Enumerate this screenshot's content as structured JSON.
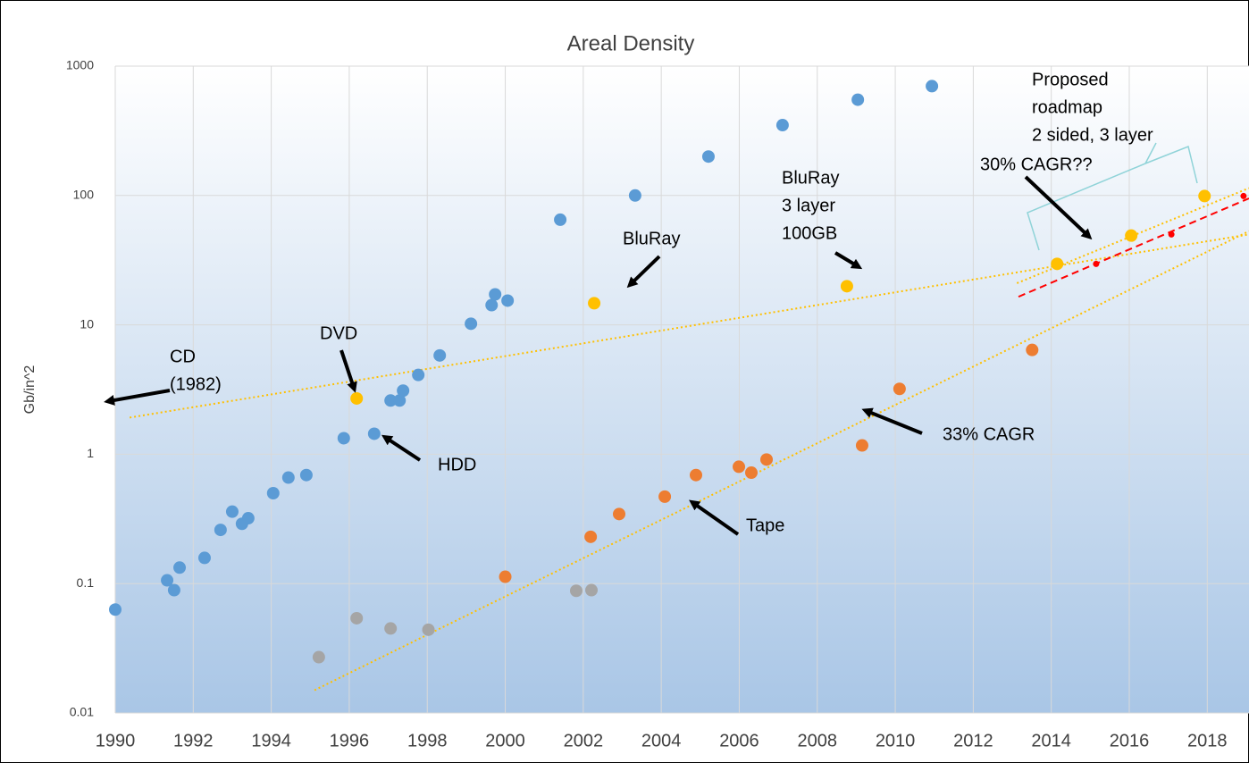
{
  "chart_data": {
    "type": "scatter",
    "title": "Areal Density",
    "y_label": "Gb/in^2",
    "log_y": true,
    "grid": true,
    "xlim": [
      1990,
      2019.07
    ],
    "xticks": [
      1990,
      1992,
      1994,
      1996,
      1998,
      2000,
      2002,
      2004,
      2006,
      2008,
      2010,
      2012,
      2014,
      2016,
      2018
    ],
    "ylim": [
      0.01,
      1000
    ],
    "yticks": [
      0.01,
      0.1,
      1,
      10,
      100,
      1000
    ],
    "series": [
      {
        "color": "#5b9bd5",
        "x": [
          1990.0,
          1991.33,
          1991.51,
          1991.65,
          1992.29,
          1992.7,
          1993.0,
          1993.25,
          1993.41,
          1994.05,
          1994.44,
          1994.9,
          1995.86,
          1996.64,
          1997.06,
          1997.29,
          1997.38,
          1997.77,
          1998.32,
          1999.12,
          1999.65,
          1999.74,
          2000.06,
          2001.41,
          2003.33,
          2005.21,
          2007.11,
          2009.04,
          2010.94
        ],
        "values": [
          0.063,
          0.106,
          0.089,
          0.133,
          0.158,
          0.26,
          0.36,
          0.29,
          0.32,
          0.5,
          0.66,
          0.69,
          1.33,
          1.44,
          2.6,
          2.6,
          3.1,
          4.1,
          5.8,
          10.2,
          14.2,
          17.2,
          15.4,
          65,
          100,
          200,
          350,
          550,
          700
        ]
      },
      {
        "color": "#ed7d31",
        "x": [
          2000.0,
          2002.19,
          2002.92,
          2004.09,
          2004.89,
          2005.99,
          2006.31,
          2006.7,
          2009.15,
          2010.11,
          2013.51
        ],
        "values": [
          0.113,
          0.23,
          0.345,
          0.47,
          0.69,
          0.8,
          0.72,
          0.91,
          1.17,
          3.2,
          6.4
        ]
      },
      {
        "color": "#a5a5a5",
        "x": [
          1995.22,
          1996.19,
          1997.06,
          1998.03,
          2001.82,
          2002.21
        ],
        "values": [
          0.027,
          0.054,
          0.045,
          0.044,
          0.088,
          0.089
        ]
      },
      {
        "color": "#ffc000",
        "x": [
          1996.19,
          2002.28,
          2008.76,
          2014.15,
          2016.05,
          2017.93
        ],
        "values": [
          2.7,
          14.7,
          19.9,
          29.6,
          49,
          99
        ]
      },
      {
        "color": "#ff0000",
        "x": [
          2015.15,
          2017.08,
          2018.93
        ],
        "values": [
          29.6,
          50,
          99
        ]
      }
    ],
    "trendlines": [
      {
        "color": "#ffc000",
        "style": "dotted",
        "x": [
          1990.37,
          2019.07
        ],
        "values": [
          1.92,
          50
        ]
      },
      {
        "color": "#ffc000",
        "style": "dotted",
        "x": [
          1995.11,
          2019.07
        ],
        "values": [
          0.015,
          53
        ]
      },
      {
        "color": "#ffc000",
        "style": "dotted",
        "x": [
          2013.12,
          2019.07
        ],
        "values": [
          21,
          114
        ]
      },
      {
        "color": "#ff0000",
        "style": "dashed",
        "x": [
          2013.16,
          2019.07
        ],
        "values": [
          16.5,
          95
        ]
      }
    ],
    "annotations": [
      [
        "CD",
        "(1982)"
      ],
      [
        "DVD"
      ],
      [
        "HDD"
      ],
      [
        "BluRay"
      ],
      [
        "BluRay",
        "3 layer",
        "100GB"
      ],
      [
        "Proposed",
        "roadmap",
        "2 sided, 3 layer"
      ],
      [
        "30% CAGR??"
      ],
      [
        "33% CAGR"
      ],
      [
        "Tape"
      ]
    ]
  }
}
